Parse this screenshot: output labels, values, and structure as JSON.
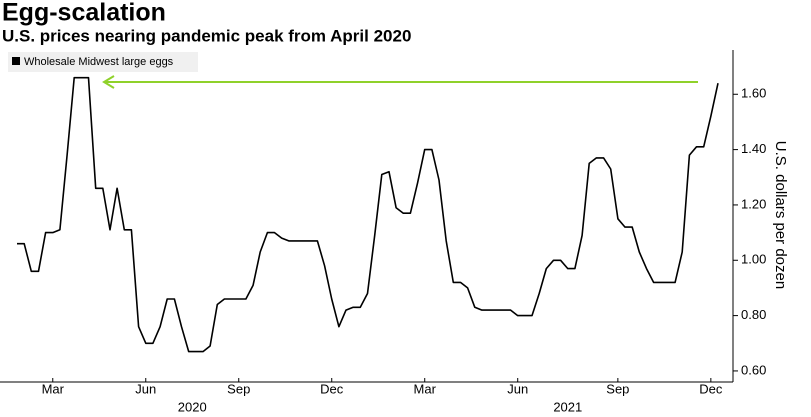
{
  "chart_data": {
    "type": "line",
    "title": "Egg-scalation",
    "subtitle": "U.S. prices nearing pandemic peak from April 2020",
    "y_axis_label": "U.S. dollars per dozen",
    "years": [
      "2020",
      "2021"
    ],
    "categories": [
      null,
      null,
      null,
      null,
      null,
      "Mar",
      null,
      null,
      null,
      null,
      null,
      null,
      null,
      null,
      null,
      null,
      null,
      null,
      "Jun",
      null,
      null,
      null,
      null,
      null,
      null,
      null,
      null,
      null,
      null,
      null,
      null,
      "Sep",
      null,
      null,
      null,
      null,
      null,
      null,
      null,
      null,
      null,
      null,
      null,
      null,
      "Dec",
      null,
      null,
      null,
      null,
      null,
      null,
      null,
      null,
      null,
      null,
      null,
      null,
      "Mar",
      null,
      null,
      null,
      null,
      null,
      null,
      null,
      null,
      null,
      null,
      null,
      null,
      "Jun",
      null,
      null,
      null,
      null,
      null,
      null,
      null,
      null,
      null,
      null,
      null,
      null,
      null,
      "Sep",
      null,
      null,
      null,
      null,
      null,
      null,
      null,
      null,
      null,
      null,
      null,
      null,
      "Dec",
      null
    ],
    "series": [
      {
        "name": "Wholesale Midwest large eggs",
        "color": "#000000",
        "values": [
          1.06,
          1.06,
          0.96,
          0.96,
          1.1,
          1.1,
          1.11,
          1.38,
          1.66,
          1.66,
          1.66,
          1.26,
          1.26,
          1.11,
          1.26,
          1.11,
          1.11,
          0.76,
          0.7,
          0.7,
          0.76,
          0.86,
          0.86,
          0.76,
          0.67,
          0.67,
          0.67,
          0.69,
          0.84,
          0.86,
          0.86,
          0.86,
          0.86,
          0.91,
          1.03,
          1.1,
          1.1,
          1.08,
          1.07,
          1.07,
          1.07,
          1.07,
          1.07,
          0.98,
          0.86,
          0.76,
          0.82,
          0.83,
          0.83,
          0.88,
          1.09,
          1.31,
          1.32,
          1.19,
          1.17,
          1.17,
          1.28,
          1.4,
          1.4,
          1.29,
          1.07,
          0.92,
          0.92,
          0.9,
          0.83,
          0.82,
          0.82,
          0.82,
          0.82,
          0.82,
          0.8,
          0.8,
          0.8,
          0.88,
          0.97,
          1.0,
          1.0,
          0.97,
          0.97,
          1.09,
          1.35,
          1.37,
          1.37,
          1.33,
          1.15,
          1.12,
          1.12,
          1.03,
          0.97,
          0.92,
          0.92,
          0.92,
          0.92,
          1.03,
          1.38,
          1.41,
          1.41,
          1.52,
          1.64
        ]
      }
    ],
    "ylim": [
      0.56,
      1.76
    ],
    "yticks": [
      {
        "value": 0.6,
        "label": "0.60"
      },
      {
        "value": 0.8,
        "label": "0.80"
      },
      {
        "value": 1.0,
        "label": "1.00"
      },
      {
        "value": 1.2,
        "label": "1.20"
      },
      {
        "value": 1.4,
        "label": "1.40"
      },
      {
        "value": 1.6,
        "label": "1.60"
      }
    ],
    "grid": false,
    "legend": "top-left"
  }
}
